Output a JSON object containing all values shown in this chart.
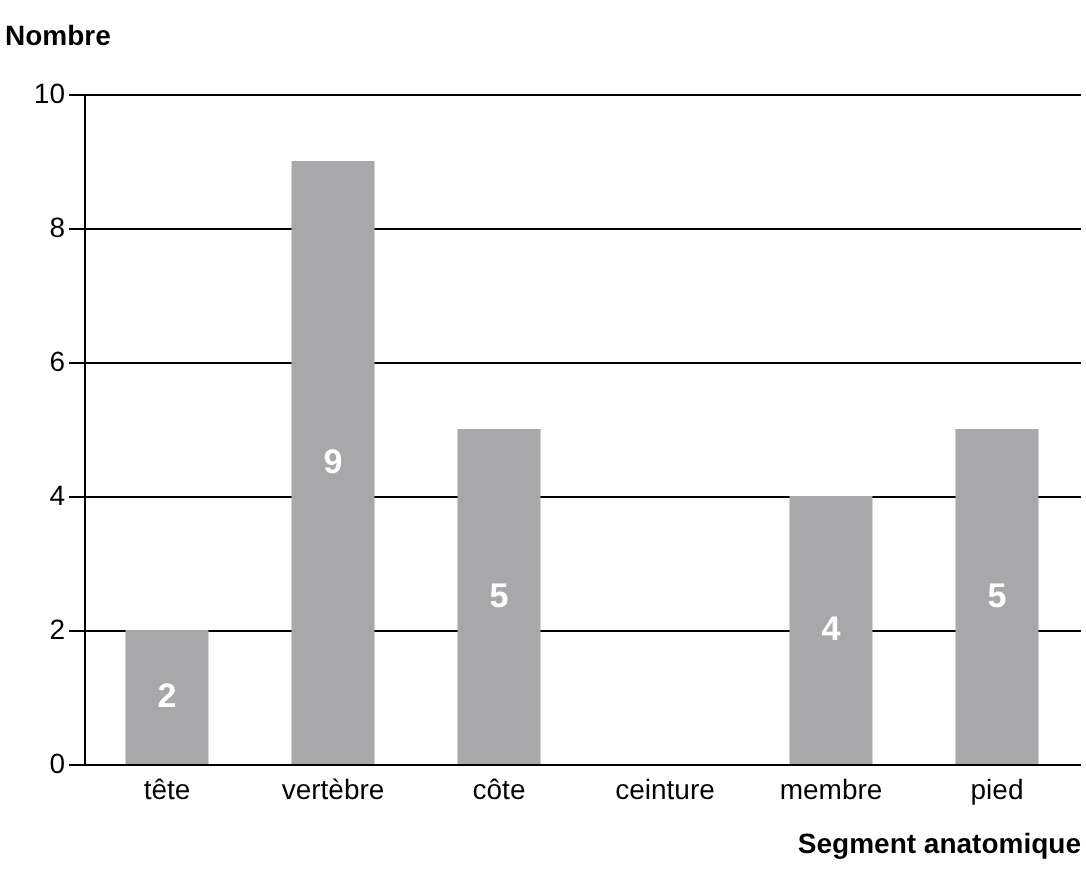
{
  "chart_data": {
    "type": "bar",
    "xlabel": "Segment anatomique",
    "ylabel": "Nombre",
    "categories": [
      "tête",
      "vertèbre",
      "côte",
      "ceinture",
      "membre",
      "pied"
    ],
    "values": [
      2,
      9,
      5,
      0,
      4,
      5
    ],
    "value_labels": [
      "2",
      "9",
      "5",
      null,
      "4",
      "5"
    ],
    "color": "#a8a8aa",
    "ylim": [
      0,
      10
    ],
    "yticks": [
      0,
      2,
      4,
      6,
      8,
      10
    ],
    "grid": "y"
  }
}
